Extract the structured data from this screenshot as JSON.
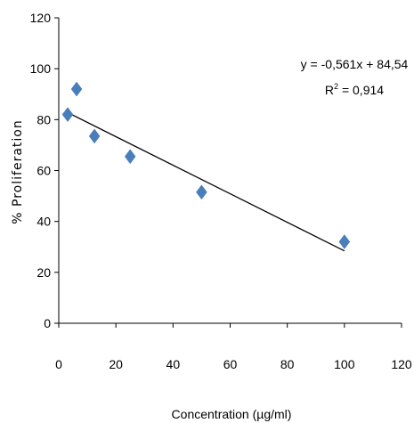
{
  "chart_data": {
    "type": "scatter",
    "xlabel": "Concentration (µg/ml)",
    "ylabel": "% Proliferation",
    "xlim": [
      0,
      120
    ],
    "ylim": [
      0,
      120
    ],
    "xticks": [
      0,
      20,
      40,
      60,
      80,
      100,
      120
    ],
    "yticks": [
      0,
      20,
      40,
      60,
      80,
      100,
      120
    ],
    "grid": false,
    "series": [
      {
        "marker": "diamond",
        "color": "#4a7ebb",
        "points": [
          {
            "x": 3.125,
            "y": 82
          },
          {
            "x": 6.25,
            "y": 92
          },
          {
            "x": 12.5,
            "y": 73.5
          },
          {
            "x": 25,
            "y": 65.5
          },
          {
            "x": 50,
            "y": 51.5
          },
          {
            "x": 100,
            "y": 32
          }
        ]
      }
    ],
    "trendline": {
      "type": "linear",
      "slope": -0.561,
      "intercept": 84.54,
      "x_range": [
        3.125,
        100
      ],
      "color": "#000000"
    },
    "annotations": {
      "equation": "y = -0,561x + 84,54",
      "r2_prefix": "R",
      "r2_exponent": "2",
      "r2_value": " = 0,914"
    }
  }
}
